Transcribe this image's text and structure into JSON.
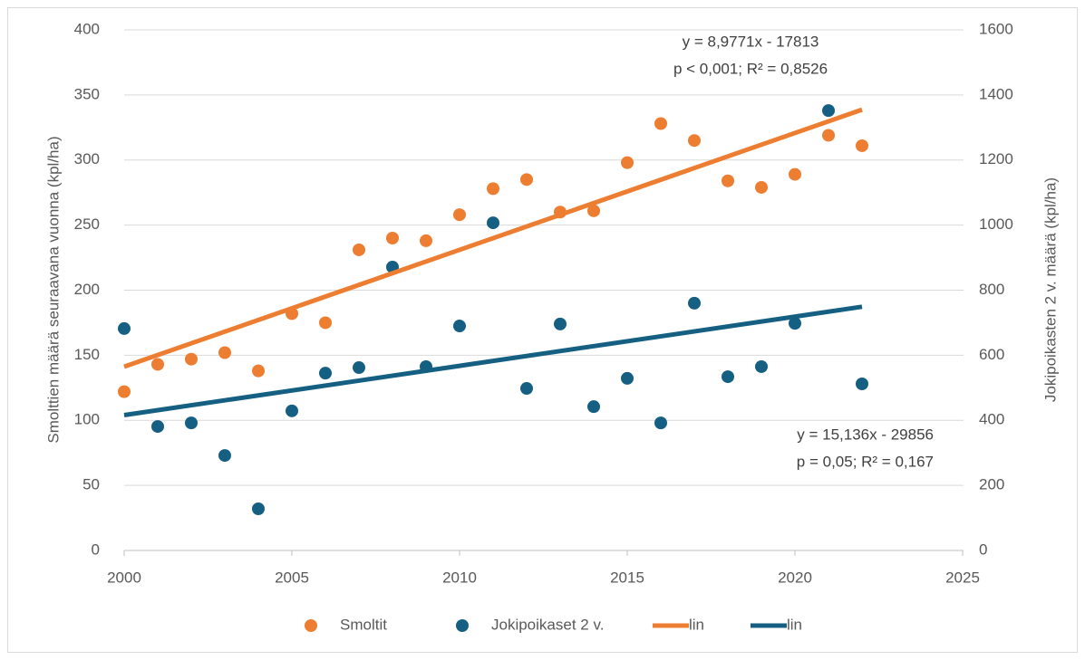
{
  "chart_data": {
    "type": "scatter",
    "ylabel": "Smolttien määrä seuraavana vuonna (kpl/ha)",
    "y2label": "Jokipoikasten 2 v. määrä (kpl/ha)",
    "x": [
      2000,
      2001,
      2002,
      2003,
      2004,
      2005,
      2006,
      2007,
      2008,
      2009,
      2010,
      2011,
      2012,
      2013,
      2014,
      2015,
      2016,
      2017,
      2018,
      2019,
      2020,
      2021,
      2022
    ],
    "series": [
      {
        "name": "Smoltit",
        "type": "scatter",
        "color": "#ED7D31",
        "axis": "y",
        "values": [
          122,
          143,
          147,
          152,
          138,
          182,
          175,
          231,
          240,
          238,
          258,
          278,
          285,
          260,
          261,
          298,
          328,
          315,
          284,
          279,
          289,
          319,
          311
        ]
      },
      {
        "name": "Jokipoikaset 2 v.",
        "type": "scatter",
        "color": "#156082",
        "axis": "y2",
        "values": [
          682,
          381,
          392,
          292,
          128,
          429,
          545,
          562,
          871,
          565,
          690,
          1007,
          498,
          696,
          442,
          529,
          392,
          760,
          534,
          565,
          698,
          1352,
          512
        ]
      },
      {
        "name": "lin",
        "type": "line",
        "color": "#ED7D31",
        "axis": "y",
        "x": [
          2000,
          2022
        ],
        "values": [
          141.2,
          338.7
        ]
      },
      {
        "name": "lin",
        "type": "line",
        "color": "#156082",
        "axis": "y2",
        "x": [
          2000,
          2022
        ],
        "values": [
          416,
          749
        ]
      }
    ],
    "annotations": [
      "y = 8,9771x - 17813",
      "p < 0,001; R² = 0,8526",
      "y = 15,136x - 29856",
      "p = 0,05; R² = 0,167"
    ],
    "xlim": [
      2000,
      2025
    ],
    "xticks": [
      2000,
      2005,
      2010,
      2015,
      2020,
      2025
    ],
    "ylim": [
      0,
      400
    ],
    "yticks": [
      0,
      50,
      100,
      150,
      200,
      250,
      300,
      350,
      400
    ],
    "y2lim": [
      0,
      1600
    ],
    "y2ticks": [
      0,
      200,
      400,
      600,
      800,
      1000,
      1200,
      1400,
      1600
    ],
    "grid": true,
    "legend": "bottom"
  }
}
